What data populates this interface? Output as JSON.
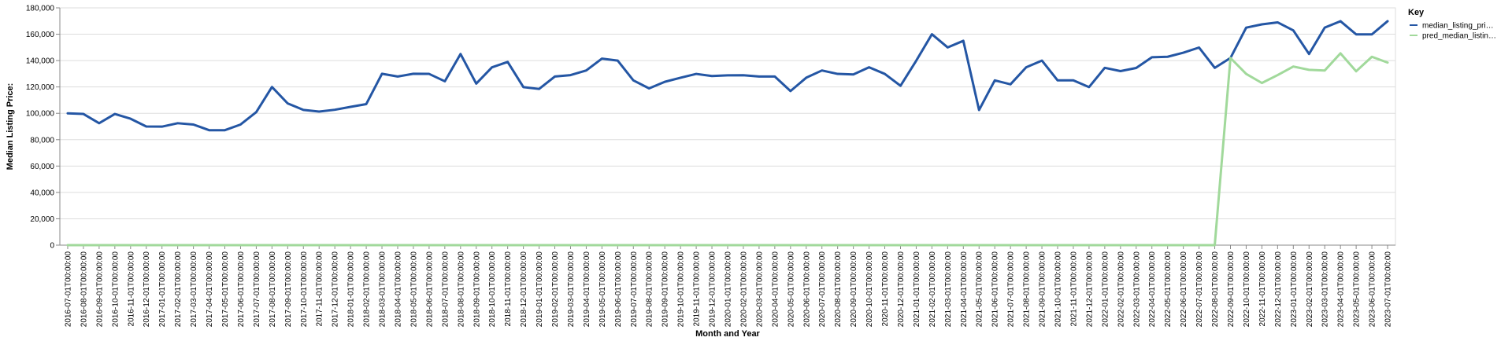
{
  "chart_data": {
    "type": "line",
    "xlabel": "Month and Year",
    "ylabel": "Median Listing Price:",
    "ylim": [
      0,
      180000
    ],
    "yticks": [
      "0",
      "20,000",
      "40,000",
      "60,000",
      "80,000",
      "100,000",
      "120,000",
      "140,000",
      "160,000",
      "180,000"
    ],
    "grid": true,
    "legend": {
      "title": "Key",
      "position": "right"
    },
    "x": [
      "2016-07-01T00:00:00",
      "2016-08-01T00:00:00",
      "2016-09-01T00:00:00",
      "2016-10-01T00:00:00",
      "2016-11-01T00:00:00",
      "2016-12-01T00:00:00",
      "2017-01-01T00:00:00",
      "2017-02-01T00:00:00",
      "2017-03-01T00:00:00",
      "2017-04-01T00:00:00",
      "2017-05-01T00:00:00",
      "2017-06-01T00:00:00",
      "2017-07-01T00:00:00",
      "2017-08-01T00:00:00",
      "2017-09-01T00:00:00",
      "2017-10-01T00:00:00",
      "2017-11-01T00:00:00",
      "2017-12-01T00:00:00",
      "2018-01-01T00:00:00",
      "2018-02-01T00:00:00",
      "2018-03-01T00:00:00",
      "2018-04-01T00:00:00",
      "2018-05-01T00:00:00",
      "2018-06-01T00:00:00",
      "2018-07-01T00:00:00",
      "2018-08-01T00:00:00",
      "2018-09-01T00:00:00",
      "2018-10-01T00:00:00",
      "2018-11-01T00:00:00",
      "2018-12-01T00:00:00",
      "2019-01-01T00:00:00",
      "2019-02-01T00:00:00",
      "2019-03-01T00:00:00",
      "2019-04-01T00:00:00",
      "2019-05-01T00:00:00",
      "2019-06-01T00:00:00",
      "2019-07-01T00:00:00",
      "2019-08-01T00:00:00",
      "2019-09-01T00:00:00",
      "2019-10-01T00:00:00",
      "2019-11-01T00:00:00",
      "2019-12-01T00:00:00",
      "2020-01-01T00:00:00",
      "2020-02-01T00:00:00",
      "2020-03-01T00:00:00",
      "2020-04-01T00:00:00",
      "2020-05-01T00:00:00",
      "2020-06-01T00:00:00",
      "2020-07-01T00:00:00",
      "2020-08-01T00:00:00",
      "2020-09-01T00:00:00",
      "2020-10-01T00:00:00",
      "2020-11-01T00:00:00",
      "2020-12-01T00:00:00",
      "2021-01-01T00:00:00",
      "2021-02-01T00:00:00",
      "2021-03-01T00:00:00",
      "2021-04-01T00:00:00",
      "2021-05-01T00:00:00",
      "2021-06-01T00:00:00",
      "2021-07-01T00:00:00",
      "2021-08-01T00:00:00",
      "2021-09-01T00:00:00",
      "2021-10-01T00:00:00",
      "2021-11-01T00:00:00",
      "2021-12-01T00:00:00",
      "2022-01-01T00:00:00",
      "2022-02-01T00:00:00",
      "2022-03-01T00:00:00",
      "2022-04-01T00:00:00",
      "2022-05-01T00:00:00",
      "2022-06-01T00:00:00",
      "2022-07-01T00:00:00",
      "2022-08-01T00:00:00",
      "2022-09-01T00:00:00",
      "2022-10-01T00:00:00",
      "2022-11-01T00:00:00",
      "2022-12-01T00:00:00",
      "2023-01-01T00:00:00",
      "2023-02-01T00:00:00",
      "2023-03-01T00:00:00",
      "2023-04-01T00:00:00",
      "2023-05-01T00:00:00",
      "2023-06-01T00:00:00",
      "2023-07-01T00:00:00"
    ],
    "series": [
      {
        "name": "median_listing_pri…",
        "color": "#2456a4",
        "values": [
          100000,
          99500,
          92500,
          99500,
          95900,
          90000,
          89900,
          92500,
          91500,
          87200,
          87200,
          91500,
          100900,
          120000,
          107500,
          102600,
          101300,
          102700,
          104900,
          107000,
          130000,
          127900,
          130000,
          129900,
          124300,
          145000,
          122500,
          134900,
          139000,
          119900,
          118500,
          127900,
          129000,
          132500,
          141500,
          140000,
          125000,
          118900,
          123900,
          127000,
          129900,
          128300,
          128800,
          128900,
          127900,
          127900,
          116900,
          127000,
          132500,
          129900,
          129500,
          134900,
          129900,
          120900,
          139900,
          160000,
          150000,
          155000,
          102500,
          125000,
          122000,
          134900,
          140000,
          125000,
          125000,
          119900,
          134500,
          132000,
          134400,
          142500,
          142900,
          146000,
          149900,
          134500,
          142000,
          165000,
          167500,
          169000,
          162900,
          145000,
          165000,
          169900,
          159900,
          159900,
          169900
        ]
      },
      {
        "name": "pred_median_listin…",
        "color": "#a1d99b",
        "values": [
          0,
          0,
          0,
          0,
          0,
          0,
          0,
          0,
          0,
          0,
          0,
          0,
          0,
          0,
          0,
          0,
          0,
          0,
          0,
          0,
          0,
          0,
          0,
          0,
          0,
          0,
          0,
          0,
          0,
          0,
          0,
          0,
          0,
          0,
          0,
          0,
          0,
          0,
          0,
          0,
          0,
          0,
          0,
          0,
          0,
          0,
          0,
          0,
          0,
          0,
          0,
          0,
          0,
          0,
          0,
          0,
          0,
          0,
          0,
          0,
          0,
          0,
          0,
          0,
          0,
          0,
          0,
          0,
          0,
          0,
          0,
          0,
          0,
          0,
          142000,
          129900,
          123000,
          129000,
          135500,
          133000,
          132500,
          145500,
          131900,
          142900,
          138500
        ]
      }
    ]
  }
}
